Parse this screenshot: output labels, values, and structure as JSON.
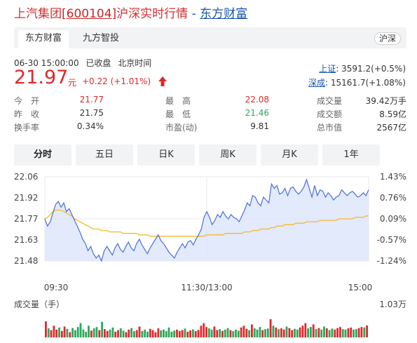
{
  "header": {
    "name": "上汽集团",
    "code": "[600104]",
    "subtitle": "沪深实时行情",
    "separator": " - ",
    "site": "东方财富"
  },
  "source_tabs": [
    {
      "label": "东方财富",
      "active": true
    },
    {
      "label": "九方智投",
      "active": false
    }
  ],
  "market_button": "沪深",
  "meta": {
    "datetime": "06-30 15:00:00",
    "status": "已收盘",
    "timezone": "北京时间"
  },
  "quote": {
    "price": "21.97",
    "unit": "元",
    "change": "+0.22 (+1.01%)",
    "direction": "up",
    "color": "#e0282b"
  },
  "indices": [
    {
      "name": "上证",
      "value": ": 3591.2(+0.5%)"
    },
    {
      "name": "深成",
      "value": ": 15161.7(+1.08%)"
    }
  ],
  "stats": [
    [
      {
        "label": "今　开",
        "value": "21.77",
        "tone": "red"
      },
      {
        "label": "最　高",
        "value": "22.08",
        "tone": "red"
      },
      {
        "label": "成交量",
        "value": "39.42万手",
        "tone": "dark"
      }
    ],
    [
      {
        "label": "昨　收",
        "value": "21.75",
        "tone": "dark"
      },
      {
        "label": "最　低",
        "value": "21.46",
        "tone": "green"
      },
      {
        "label": "成交额",
        "value": "8.59亿",
        "tone": "dark"
      }
    ],
    [
      {
        "label": "换手率",
        "value": "0.34%",
        "tone": "dark"
      },
      {
        "label": "市盈(动)",
        "value": "9.81",
        "tone": "dark"
      },
      {
        "label": "总市值",
        "value": "2567亿",
        "tone": "dark"
      }
    ]
  ],
  "period_tabs": [
    {
      "label": "分时",
      "active": true
    },
    {
      "label": "五日",
      "active": false
    },
    {
      "label": "日K",
      "active": false
    },
    {
      "label": "周K",
      "active": false
    },
    {
      "label": "月K",
      "active": false
    },
    {
      "label": "1年",
      "active": false
    }
  ],
  "colors": {
    "up": "#e0282b",
    "down": "#2ba85c",
    "price_line": "#4a6fd8",
    "avg_line": "#f5b82e",
    "area_fill": "#dde6fb"
  },
  "chart_data": {
    "type": "line",
    "price_ticks": [
      "22.06",
      "21.92",
      "21.77",
      "21.63",
      "21.48"
    ],
    "pct_ticks": [
      "1.43%",
      "0.76%",
      "0.09%",
      "-0.57%",
      "-1.24%"
    ],
    "ylim": [
      21.48,
      22.06
    ],
    "prev_close": 21.75,
    "time_labels": [
      "09:30",
      "11:30/13:00",
      "15:00"
    ],
    "price": [
      21.77,
      21.72,
      21.75,
      21.81,
      21.87,
      21.89,
      21.85,
      21.88,
      21.82,
      21.84,
      21.8,
      21.76,
      21.72,
      21.68,
      21.63,
      21.6,
      21.55,
      21.58,
      21.53,
      21.5,
      21.52,
      21.48,
      21.55,
      21.58,
      21.55,
      21.52,
      21.57,
      21.6,
      21.56,
      21.54,
      21.58,
      21.61,
      21.57,
      21.55,
      21.6,
      21.63,
      21.59,
      21.56,
      21.53,
      21.57,
      21.6,
      21.63,
      21.66,
      21.62,
      21.6,
      21.57,
      21.54,
      21.52,
      21.5,
      21.54,
      21.57,
      21.6,
      21.57,
      21.61,
      21.62,
      21.59,
      21.63,
      21.66,
      21.7,
      21.78,
      21.82,
      21.78,
      21.73,
      21.76,
      21.8,
      21.78,
      21.82,
      21.79,
      21.77,
      21.8,
      21.78,
      21.77,
      21.75,
      21.79,
      21.83,
      21.88,
      21.86,
      21.93,
      21.92,
      21.88,
      21.86,
      21.92,
      21.9,
      21.88,
      22.01,
      21.98,
      22.0,
      21.94,
      21.95,
      21.98,
      21.93,
      21.98,
      21.99,
      21.96,
      21.94,
      21.96,
      21.99,
      22.04,
      21.98,
      21.92,
      22.0,
      21.93,
      21.97,
      21.96,
      21.92,
      21.95,
      21.93,
      21.9,
      21.92,
      21.93,
      21.97,
      21.95,
      21.93,
      21.95,
      21.96,
      21.94,
      21.92,
      21.93,
      21.95,
      21.93,
      21.97
    ],
    "avg": [
      21.77,
      21.78,
      21.8,
      21.82,
      21.83,
      21.83,
      21.83,
      21.82,
      21.81,
      21.8,
      21.79,
      21.77,
      21.76,
      21.75,
      21.74,
      21.73,
      21.72,
      21.71,
      21.7,
      21.7,
      21.7,
      21.69,
      21.69,
      21.69,
      21.68,
      21.68,
      21.68,
      21.68,
      21.68,
      21.67,
      21.67,
      21.67,
      21.67,
      21.67,
      21.67,
      21.66,
      21.66,
      21.66,
      21.66,
      21.65,
      21.65,
      21.65,
      21.65,
      21.65,
      21.65,
      21.65,
      21.65,
      21.65,
      21.65,
      21.65,
      21.65,
      21.65,
      21.65,
      21.65,
      21.65,
      21.65,
      21.65,
      21.65,
      21.65,
      21.65,
      21.66,
      21.66,
      21.66,
      21.66,
      21.66,
      21.66,
      21.66,
      21.67,
      21.67,
      21.67,
      21.67,
      21.67,
      21.67,
      21.67,
      21.68,
      21.68,
      21.68,
      21.69,
      21.69,
      21.69,
      21.7,
      21.7,
      21.7,
      21.7,
      21.71,
      21.71,
      21.72,
      21.72,
      21.72,
      21.73,
      21.73,
      21.73,
      21.73,
      21.74,
      21.74,
      21.74,
      21.74,
      21.75,
      21.75,
      21.75,
      21.75,
      21.75,
      21.76,
      21.76,
      21.76,
      21.76,
      21.76,
      21.76,
      21.76,
      21.77,
      21.77,
      21.77,
      21.77,
      21.77,
      21.77,
      21.78,
      21.78,
      21.78,
      21.78,
      21.79,
      21.79
    ],
    "volume_label": "成交量（手）",
    "volume_max_label": "1.03万",
    "volume": [
      0.62,
      0.35,
      0.28,
      0.45,
      0.3,
      0.38,
      0.25,
      0.42,
      0.33,
      0.2,
      0.36,
      0.28,
      0.4,
      0.55,
      0.3,
      0.22,
      0.45,
      0.26,
      0.35,
      0.4,
      0.28,
      0.6,
      0.32,
      0.25,
      0.3,
      0.38,
      0.22,
      0.28,
      0.35,
      0.26,
      0.2,
      0.3,
      0.36,
      0.24,
      0.28,
      0.42,
      0.25,
      0.3,
      0.22,
      0.33,
      0.28,
      0.2,
      0.35,
      0.27,
      0.3,
      0.24,
      0.38,
      0.22,
      0.26,
      0.3,
      0.25,
      0.28,
      0.34,
      0.22,
      0.27,
      0.31,
      0.24,
      0.29,
      0.45,
      0.55,
      0.4,
      0.35,
      0.3,
      0.42,
      0.28,
      0.32,
      0.25,
      0.3,
      0.36,
      0.28,
      0.24,
      0.3,
      0.26,
      0.38,
      0.45,
      0.33,
      0.28,
      0.5,
      0.35,
      0.3,
      0.4,
      0.28,
      0.32,
      0.34,
      0.7,
      0.45,
      0.38,
      0.32,
      0.35,
      0.3,
      0.42,
      0.36,
      0.28,
      0.33,
      0.3,
      0.38,
      0.45,
      0.55,
      0.35,
      0.4,
      0.5,
      0.32,
      0.36,
      0.3,
      0.42,
      0.35,
      0.28,
      0.34,
      0.3,
      0.36,
      0.4,
      0.32,
      0.3,
      0.35,
      0.38,
      0.3,
      0.32,
      0.36,
      0.4,
      0.38,
      0.46
    ],
    "volume_dir": [
      "u",
      "d",
      "u",
      "u",
      "u",
      "d",
      "u",
      "u",
      "d",
      "u",
      "d",
      "d",
      "d",
      "d",
      "d",
      "d",
      "d",
      "u",
      "d",
      "d",
      "u",
      "d",
      "u",
      "u",
      "d",
      "d",
      "u",
      "u",
      "d",
      "d",
      "u",
      "u",
      "d",
      "d",
      "u",
      "u",
      "d",
      "d",
      "d",
      "u",
      "u",
      "u",
      "u",
      "d",
      "d",
      "d",
      "d",
      "d",
      "d",
      "u",
      "u",
      "u",
      "d",
      "u",
      "u",
      "d",
      "u",
      "u",
      "u",
      "u",
      "u",
      "d",
      "d",
      "u",
      "u",
      "d",
      "u",
      "d",
      "d",
      "u",
      "d",
      "d",
      "d",
      "u",
      "u",
      "u",
      "d",
      "u",
      "d",
      "d",
      "d",
      "u",
      "d",
      "d",
      "u",
      "d",
      "u",
      "d",
      "u",
      "u",
      "d",
      "u",
      "u",
      "d",
      "d",
      "u",
      "u",
      "u",
      "d",
      "d",
      "u",
      "d",
      "u",
      "d",
      "d",
      "u",
      "d",
      "d",
      "u",
      "u",
      "u",
      "d",
      "d",
      "u",
      "u",
      "d",
      "d",
      "u",
      "u",
      "d",
      "u"
    ]
  }
}
